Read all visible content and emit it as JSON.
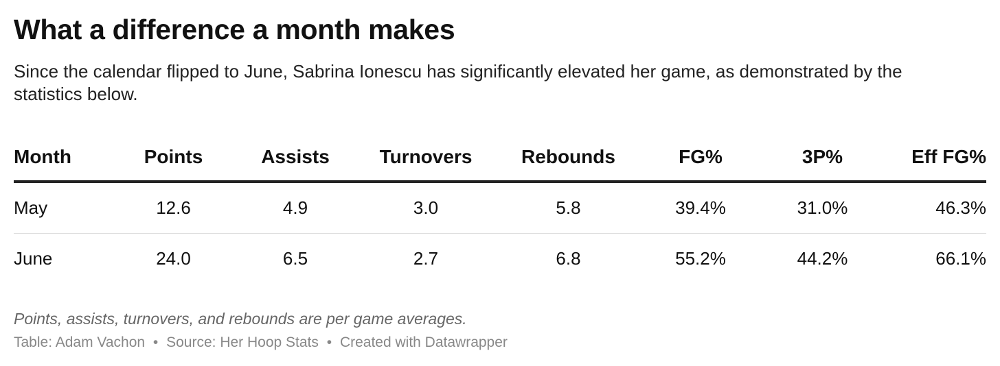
{
  "chart_data": {
    "type": "table",
    "title": "What a difference a month makes",
    "subtitle": "Since the calendar flipped to June, Sabrina Ionescu has significantly elevated her game, as demonstrated by the statistics below.",
    "columns": [
      "Month",
      "Points",
      "Assists",
      "Turnovers",
      "Rebounds",
      "FG%",
      "3P%",
      "Eff FG%"
    ],
    "rows": [
      [
        "May",
        "12.6",
        "4.9",
        "3.0",
        "5.8",
        "39.4%",
        "31.0%",
        "46.3%"
      ],
      [
        "June",
        "24.0",
        "6.5",
        "2.7",
        "6.8",
        "55.2%",
        "44.2%",
        "66.1%"
      ]
    ],
    "note": "Points, assists, turnovers, and rebounds are per game averages.",
    "footer": {
      "table_by": "Table: Adam Vachon",
      "source": "Source: Her Hoop Stats",
      "created_with": "Created with Datawrapper",
      "separator": "•"
    }
  }
}
